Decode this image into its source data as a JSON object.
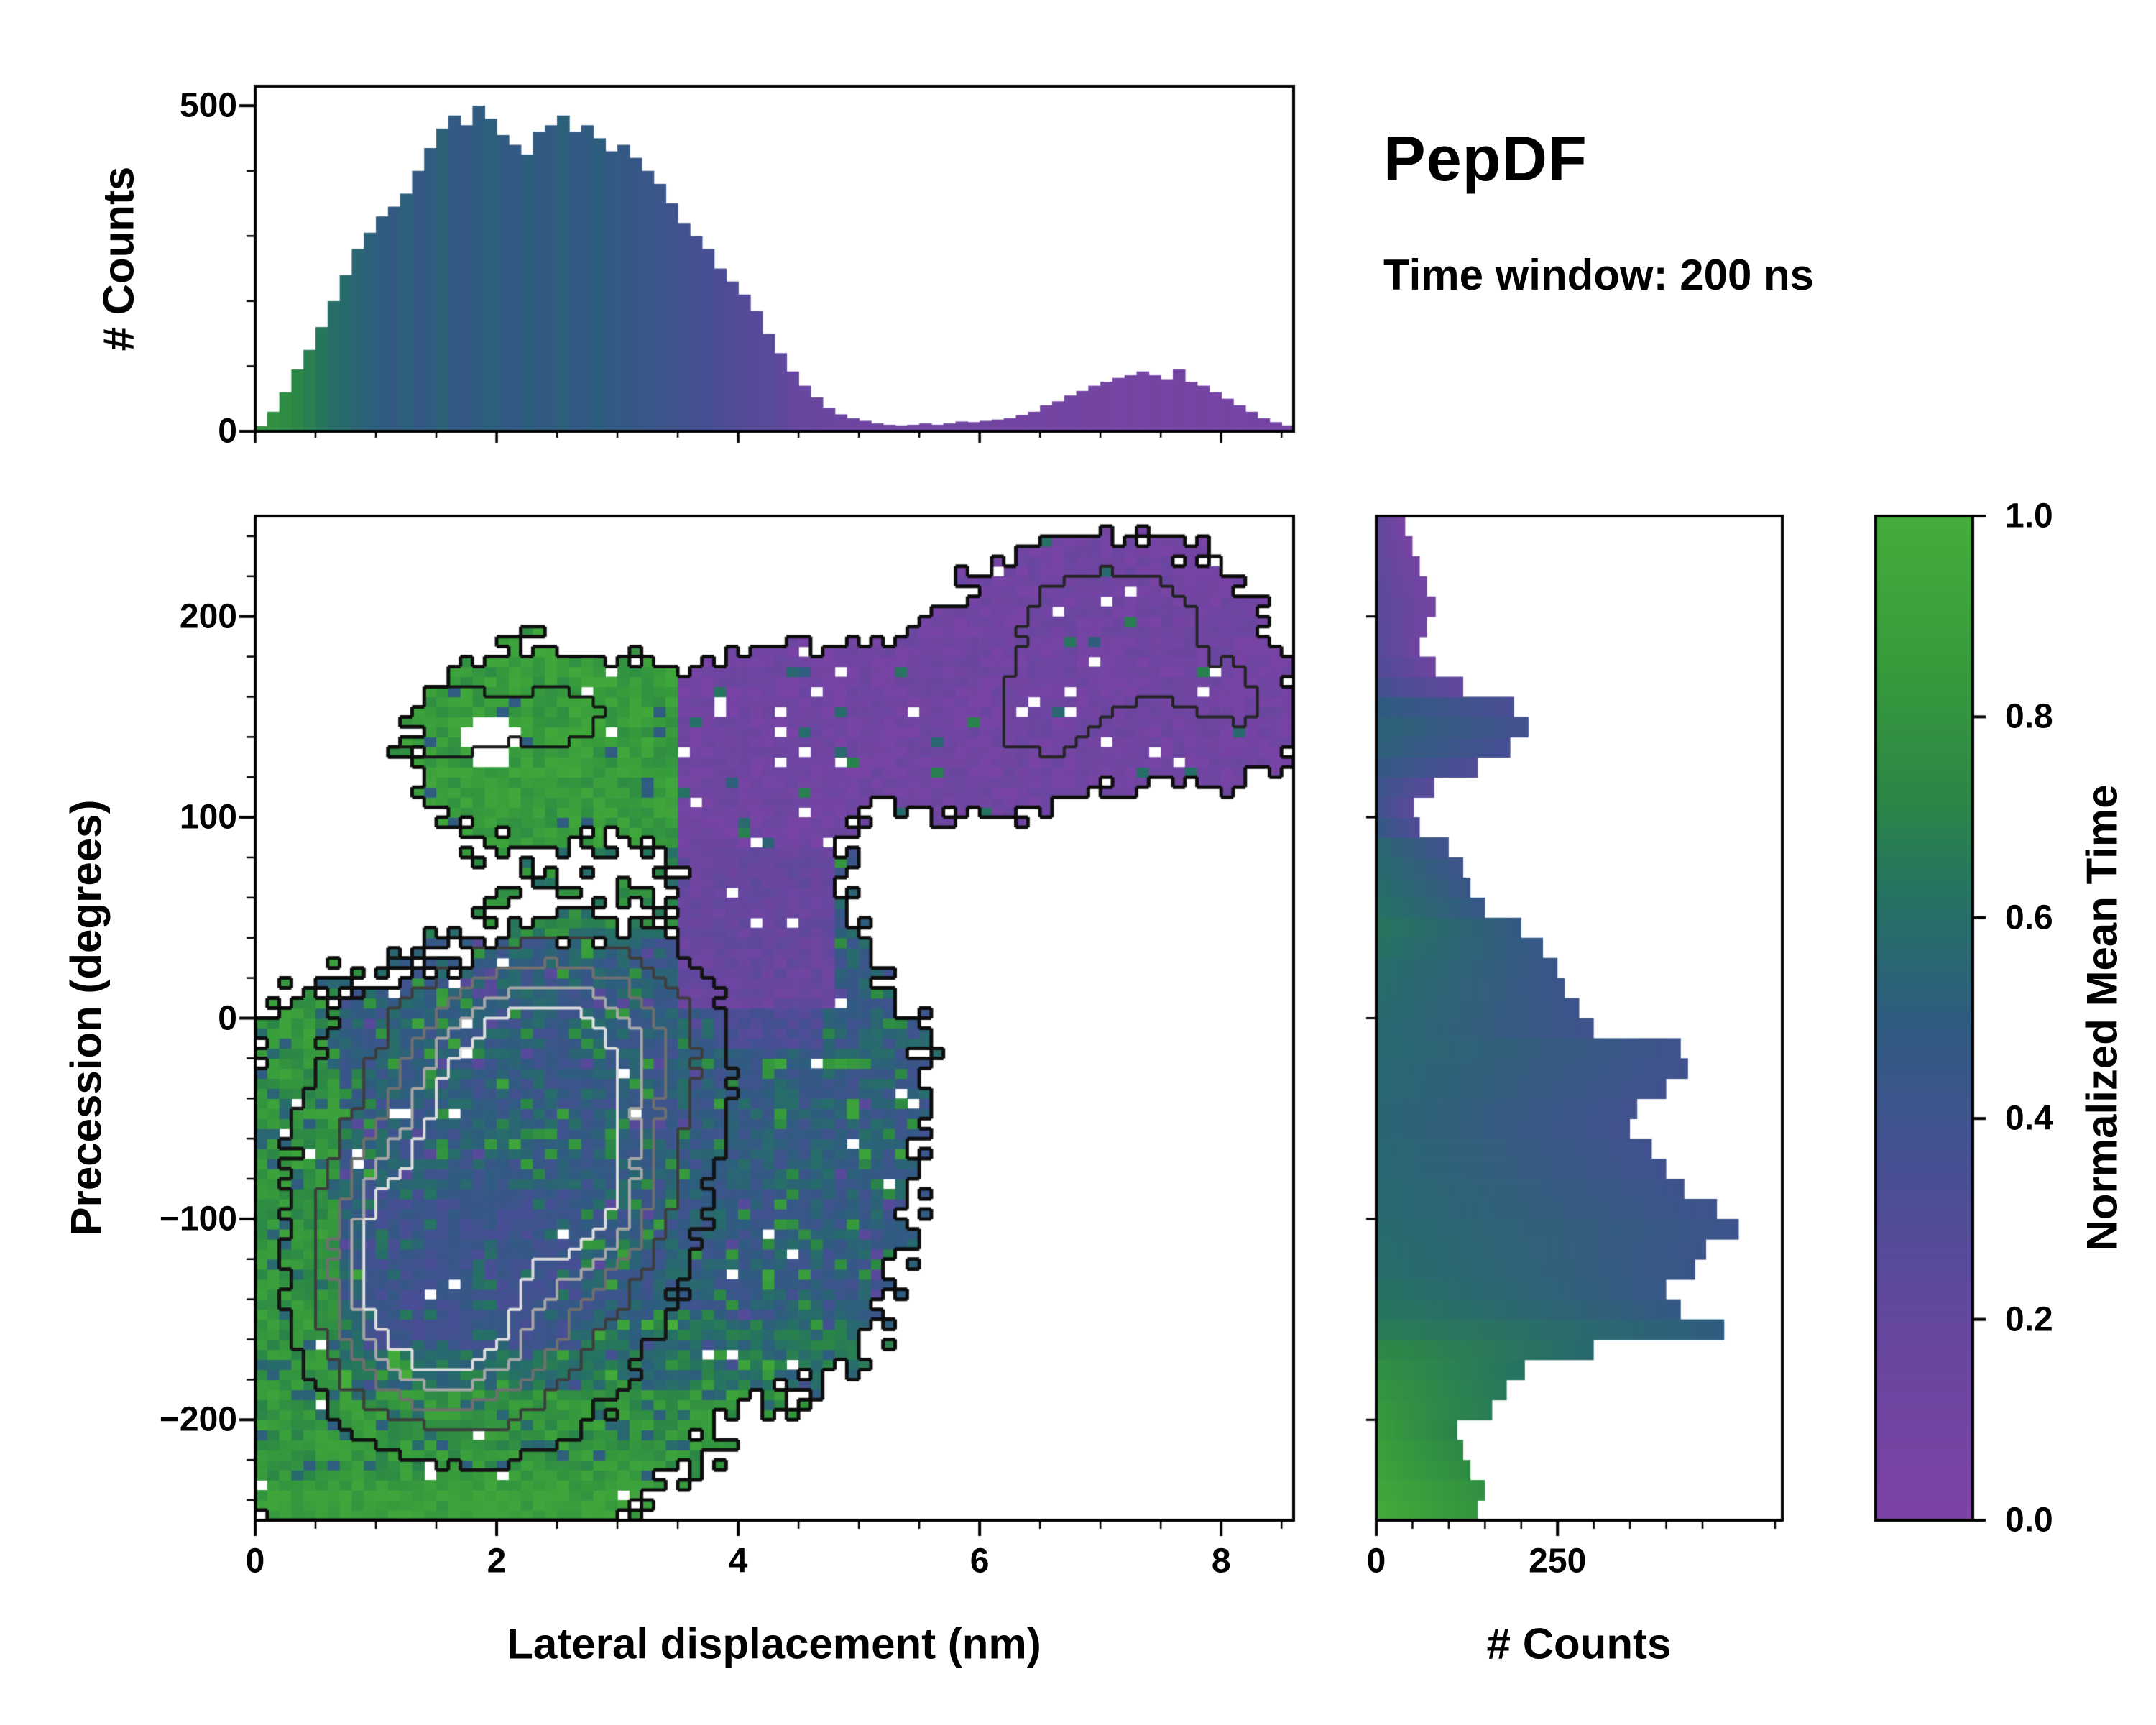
{
  "figure": {
    "title": "PepDF",
    "subtitle": "Time window: 200 ns",
    "background": "#ffffff"
  },
  "labels": {
    "top_ylabel": "# Counts",
    "main_xlabel": "Lateral displacement (nm)",
    "main_ylabel": "Precession (degrees)",
    "right_xlabel": "# Counts",
    "colorbar_label": "Normalized Mean Time"
  },
  "ticks": {
    "main_x": {
      "values": [
        0,
        2,
        4,
        6,
        8
      ],
      "labels": [
        "0",
        "2",
        "4",
        "6",
        "8"
      ],
      "minor_step": 0.5
    },
    "main_y": {
      "values": [
        -200,
        -100,
        0,
        100,
        200
      ],
      "labels": [
        "−200",
        "−100",
        "0",
        "100",
        "200"
      ],
      "minor_step": 20
    },
    "top_y": {
      "values": [
        0,
        500
      ],
      "labels": [
        "0",
        "500"
      ],
      "minor_step": 100
    },
    "right_x": {
      "values": [
        0,
        250
      ],
      "labels": [
        "0",
        "250"
      ],
      "minor_step": 50
    },
    "colorbar": {
      "values": [
        0,
        0.2,
        0.4,
        0.6,
        0.8,
        1
      ],
      "labels": [
        "0.0",
        "0.2",
        "0.4",
        "0.6",
        "0.8",
        "1.0"
      ]
    }
  },
  "colorbar": {
    "min": 0,
    "max": 1,
    "stops": [
      {
        "t": 0.0,
        "color": "#7e42a6"
      },
      {
        "t": 0.2,
        "color": "#64479f"
      },
      {
        "t": 0.35,
        "color": "#474f94"
      },
      {
        "t": 0.5,
        "color": "#2f5c80"
      },
      {
        "t": 0.62,
        "color": "#257264"
      },
      {
        "t": 0.72,
        "color": "#2b8746"
      },
      {
        "t": 0.85,
        "color": "#379b3c"
      },
      {
        "t": 1.0,
        "color": "#44ad3a"
      }
    ]
  },
  "chart_data": [
    {
      "id": "top-histogram",
      "type": "bar",
      "ylabel": "# Counts",
      "xlim": [
        0,
        8.6
      ],
      "ylim": [
        0,
        530
      ],
      "bin_start": 0,
      "bin_width": 0.1,
      "values": [
        8,
        30,
        60,
        95,
        125,
        160,
        200,
        240,
        280,
        305,
        330,
        345,
        365,
        400,
        435,
        465,
        485,
        470,
        500,
        480,
        455,
        440,
        425,
        460,
        470,
        485,
        460,
        470,
        450,
        430,
        440,
        420,
        400,
        380,
        350,
        320,
        300,
        280,
        250,
        230,
        210,
        185,
        150,
        120,
        92,
        70,
        52,
        36,
        26,
        20,
        16,
        12,
        10,
        9,
        10,
        12,
        10,
        12,
        15,
        14,
        16,
        18,
        20,
        25,
        30,
        40,
        46,
        55,
        62,
        70,
        76,
        82,
        86,
        92,
        86,
        80,
        95,
        76,
        70,
        60,
        50,
        40,
        30,
        20,
        14,
        9
      ],
      "color_value": [
        0.8,
        0.78,
        0.75,
        0.72,
        0.68,
        0.64,
        0.6,
        0.58,
        0.55,
        0.52,
        0.5,
        0.48,
        0.52,
        0.47,
        0.5,
        0.53,
        0.48,
        0.46,
        0.5,
        0.52,
        0.49,
        0.47,
        0.51,
        0.48,
        0.5,
        0.52,
        0.47,
        0.49,
        0.51,
        0.48,
        0.46,
        0.45,
        0.44,
        0.42,
        0.4,
        0.38,
        0.36,
        0.35,
        0.33,
        0.3,
        0.28,
        0.26,
        0.25,
        0.23,
        0.2,
        0.18,
        0.17,
        0.15,
        0.14,
        0.13,
        0.12,
        0.11,
        0.1,
        0.1,
        0.1,
        0.1,
        0.09,
        0.1,
        0.1,
        0.09,
        0.09,
        0.08,
        0.09,
        0.08,
        0.09,
        0.08,
        0.08,
        0.09,
        0.08,
        0.08,
        0.08,
        0.07,
        0.08,
        0.07,
        0.08,
        0.07,
        0.08,
        0.07,
        0.08,
        0.07,
        0.08,
        0.07,
        0.08,
        0.07,
        0.08,
        0.07
      ]
    },
    {
      "id": "main-heatmap",
      "type": "heatmap",
      "xlabel": "Lateral displacement (nm)",
      "ylabel": "Precession (degrees)",
      "xlim": [
        0,
        8.6
      ],
      "ylim": [
        -250,
        250
      ],
      "grid": {
        "nx": 86,
        "ny": 100
      },
      "threshold": 0.42,
      "silhouette_blobs": [
        [
          2.1,
          -70,
          1.7,
          110,
          1.0
        ],
        [
          0.9,
          -170,
          1.1,
          90,
          0.9
        ],
        [
          1.9,
          -215,
          1.6,
          55,
          0.8
        ],
        [
          3.6,
          -70,
          1.3,
          100,
          0.8
        ],
        [
          4.7,
          -120,
          0.9,
          70,
          0.5
        ],
        [
          5.0,
          -20,
          0.9,
          55,
          0.5
        ],
        [
          2.3,
          140,
          1.15,
          52,
          0.9
        ],
        [
          4.1,
          130,
          0.75,
          55,
          0.8
        ],
        [
          5.2,
          150,
          0.9,
          40,
          0.6
        ],
        [
          7.0,
          185,
          1.35,
          62,
          1.0
        ],
        [
          6.1,
          135,
          0.8,
          40,
          0.6
        ],
        [
          4.35,
          40,
          0.55,
          70,
          0.6
        ],
        [
          0.35,
          -60,
          0.55,
          80,
          0.5
        ],
        [
          8.0,
          150,
          0.8,
          40,
          0.5
        ]
      ],
      "region_colors": {
        "upper_left_green": 0.82,
        "upper_right_purple": 0.08,
        "purple_wedge": 0.14,
        "central_blue": 0.46,
        "lower_left_indigo": 0.36,
        "edge_green": 0.74,
        "bottom_green": 0.84
      },
      "density_gaussians": [
        [
          2.0,
          -80,
          1.6,
          120,
          0.85
        ],
        [
          1.35,
          -115,
          0.65,
          48,
          1.0
        ],
        [
          2.15,
          -40,
          0.8,
          55,
          0.9
        ],
        [
          2.7,
          -90,
          0.55,
          38,
          0.7
        ],
        [
          1.6,
          -160,
          0.9,
          45,
          0.75
        ],
        [
          2.9,
          -10,
          0.9,
          50,
          0.6
        ]
      ],
      "contour_levels": [
        {
          "level": 0.3,
          "color": "#141414",
          "width": 5
        },
        {
          "level": 0.55,
          "color": "#3d3d3d",
          "width": 4
        },
        {
          "level": 0.8,
          "color": "#6f6f6f",
          "width": 4
        },
        {
          "level": 1.05,
          "color": "#a6a6a6",
          "width": 4
        },
        {
          "level": 1.3,
          "color": "#dddddd",
          "width": 4
        }
      ],
      "green_patch_contours": {
        "gaussians": [
          [
            1.55,
            148,
            0.45,
            22,
            1.0
          ],
          [
            2.5,
            150,
            0.5,
            20,
            0.8
          ]
        ],
        "level": 0.5,
        "color": "#161616",
        "width": 4
      },
      "purple_blob_contours": {
        "gaussians": [
          [
            7.1,
            190,
            0.8,
            35,
            1.0
          ],
          [
            6.5,
            148,
            0.5,
            25,
            0.6
          ],
          [
            8.1,
            158,
            0.45,
            20,
            0.5
          ]
        ],
        "level": 0.45,
        "color": "#242424",
        "width": 4
      },
      "hole_fraction": 0.012,
      "purple_hole_fraction": 0.022,
      "explicit_holes": [
        [
          1.95,
          138,
          0.22,
          12
        ]
      ]
    },
    {
      "id": "right-histogram",
      "type": "bar",
      "orientation": "horizontal",
      "xlabel": "# Counts",
      "xlim": [
        0,
        560
      ],
      "ylim": [
        -250,
        250
      ],
      "bin_start": -250,
      "bin_width": 10,
      "values": [
        140,
        150,
        130,
        120,
        112,
        160,
        180,
        205,
        300,
        480,
        420,
        400,
        440,
        455,
        500,
        470,
        425,
        400,
        380,
        350,
        360,
        400,
        430,
        420,
        300,
        280,
        260,
        250,
        230,
        200,
        150,
        130,
        120,
        100,
        60,
        52,
        80,
        140,
        185,
        210,
        190,
        120,
        82,
        60,
        70,
        82,
        70,
        60,
        50,
        40
      ],
      "color_value": [
        0.86,
        0.83,
        0.8,
        0.78,
        0.75,
        0.72,
        0.7,
        0.67,
        0.62,
        0.55,
        0.52,
        0.5,
        0.48,
        0.47,
        0.46,
        0.45,
        0.45,
        0.44,
        0.44,
        0.43,
        0.43,
        0.44,
        0.44,
        0.45,
        0.45,
        0.46,
        0.47,
        0.48,
        0.5,
        0.52,
        0.5,
        0.48,
        0.46,
        0.44,
        0.35,
        0.28,
        0.3,
        0.35,
        0.4,
        0.42,
        0.38,
        0.25,
        0.18,
        0.15,
        0.14,
        0.13,
        0.12,
        0.11,
        0.1,
        0.1
      ]
    }
  ]
}
